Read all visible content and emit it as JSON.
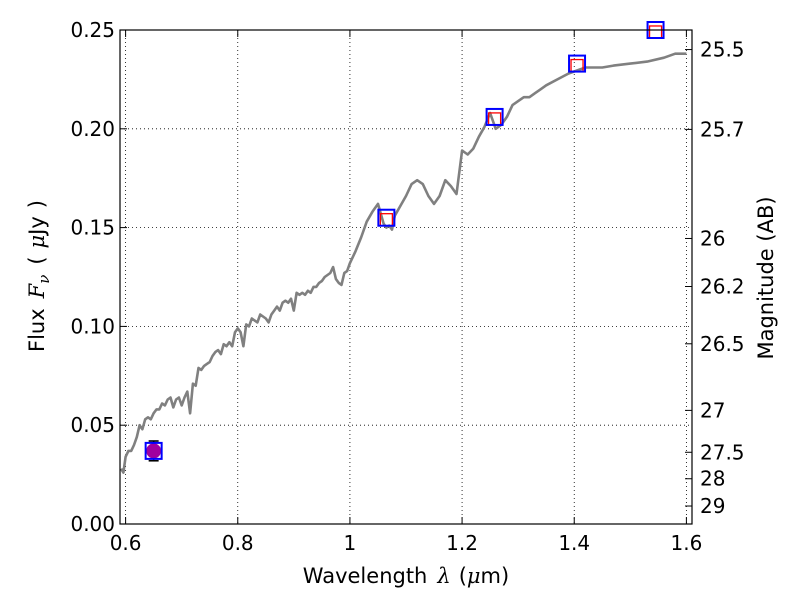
{
  "chart_data": {
    "type": "line",
    "xlabel": {
      "prefix": "Wavelength",
      "symbol": "λ",
      "unit_open": "(",
      "unit_mu": "μ",
      "unit_rest": "m)"
    },
    "ylabel": {
      "prefix": "Flux",
      "symbol": "F",
      "subscript": "ν",
      "unit_open": "(",
      "unit_mu": "μ",
      "unit_rest": "Jy",
      "unit_close": ")"
    },
    "y2label": "Magnitude (AB)",
    "xlim": [
      0.59,
      1.61
    ],
    "ylim": [
      0.0,
      0.25
    ],
    "x_ticks": [
      {
        "value": 0.6,
        "label": "0.6"
      },
      {
        "value": 0.8,
        "label": "0.8"
      },
      {
        "value": 1.0,
        "label": "1"
      },
      {
        "value": 1.2,
        "label": "1.2"
      },
      {
        "value": 1.4,
        "label": "1.4"
      },
      {
        "value": 1.6,
        "label": "1.6"
      }
    ],
    "y_ticks": [
      {
        "value": 0.0,
        "label": "0.00"
      },
      {
        "value": 0.05,
        "label": "0.05"
      },
      {
        "value": 0.1,
        "label": "0.10"
      },
      {
        "value": 0.15,
        "label": "0.15"
      },
      {
        "value": 0.2,
        "label": "0.20"
      },
      {
        "value": 0.25,
        "label": "0.25"
      }
    ],
    "y2_ticks": [
      {
        "flux": 0.2401,
        "label": "25.5"
      },
      {
        "flux": 0.1997,
        "label": "25.7"
      },
      {
        "flux": 0.1445,
        "label": "26"
      },
      {
        "flux": 0.1202,
        "label": "26.2"
      },
      {
        "flux": 0.0912,
        "label": "26.5"
      },
      {
        "flux": 0.0575,
        "label": "27"
      },
      {
        "flux": 0.0363,
        "label": "27.5"
      },
      {
        "flux": 0.0229,
        "label": "28"
      },
      {
        "flux": 0.0091,
        "label": "29"
      }
    ],
    "grid": true,
    "model_spectrum": {
      "color": "#808080",
      "x": [
        0.592,
        0.596,
        0.6,
        0.605,
        0.61,
        0.615,
        0.62,
        0.625,
        0.63,
        0.635,
        0.64,
        0.645,
        0.65,
        0.655,
        0.66,
        0.665,
        0.67,
        0.675,
        0.68,
        0.685,
        0.69,
        0.695,
        0.7,
        0.705,
        0.71,
        0.715,
        0.72,
        0.725,
        0.73,
        0.735,
        0.74,
        0.745,
        0.75,
        0.755,
        0.76,
        0.765,
        0.77,
        0.775,
        0.78,
        0.785,
        0.79,
        0.795,
        0.8,
        0.805,
        0.81,
        0.815,
        0.82,
        0.825,
        0.83,
        0.835,
        0.84,
        0.845,
        0.85,
        0.855,
        0.86,
        0.865,
        0.87,
        0.875,
        0.88,
        0.885,
        0.89,
        0.895,
        0.9,
        0.905,
        0.91,
        0.915,
        0.92,
        0.925,
        0.93,
        0.935,
        0.94,
        0.945,
        0.95,
        0.955,
        0.96,
        0.965,
        0.97,
        0.975,
        0.98,
        0.985,
        0.99,
        0.995,
        1.0,
        1.01,
        1.02,
        1.03,
        1.04,
        1.05,
        1.06,
        1.065,
        1.07,
        1.075,
        1.08,
        1.09,
        1.1,
        1.11,
        1.12,
        1.13,
        1.14,
        1.15,
        1.16,
        1.17,
        1.18,
        1.19,
        1.2,
        1.21,
        1.22,
        1.23,
        1.24,
        1.25,
        1.26,
        1.27,
        1.28,
        1.29,
        1.3,
        1.31,
        1.32,
        1.33,
        1.34,
        1.35,
        1.37,
        1.39,
        1.4,
        1.41,
        1.42,
        1.43,
        1.45,
        1.47,
        1.5,
        1.53,
        1.56,
        1.58,
        1.6
      ],
      "y": [
        0.028,
        0.026,
        0.034,
        0.037,
        0.037,
        0.04,
        0.044,
        0.05,
        0.048,
        0.053,
        0.054,
        0.053,
        0.056,
        0.058,
        0.058,
        0.061,
        0.06,
        0.063,
        0.064,
        0.059,
        0.063,
        0.064,
        0.06,
        0.064,
        0.067,
        0.056,
        0.071,
        0.07,
        0.079,
        0.078,
        0.08,
        0.081,
        0.082,
        0.085,
        0.087,
        0.088,
        0.086,
        0.091,
        0.09,
        0.092,
        0.09,
        0.097,
        0.099,
        0.097,
        0.09,
        0.101,
        0.1,
        0.104,
        0.103,
        0.102,
        0.106,
        0.105,
        0.104,
        0.102,
        0.106,
        0.108,
        0.11,
        0.108,
        0.112,
        0.113,
        0.112,
        0.114,
        0.108,
        0.117,
        0.116,
        0.117,
        0.116,
        0.118,
        0.117,
        0.12,
        0.12,
        0.122,
        0.123,
        0.125,
        0.126,
        0.127,
        0.13,
        0.124,
        0.122,
        0.121,
        0.127,
        0.128,
        0.132,
        0.138,
        0.145,
        0.153,
        0.158,
        0.162,
        0.152,
        0.15,
        0.151,
        0.149,
        0.156,
        0.161,
        0.166,
        0.172,
        0.174,
        0.172,
        0.166,
        0.162,
        0.166,
        0.174,
        0.171,
        0.167,
        0.189,
        0.187,
        0.19,
        0.196,
        0.201,
        0.208,
        0.2,
        0.202,
        0.206,
        0.212,
        0.214,
        0.216,
        0.216,
        0.218,
        0.22,
        0.222,
        0.225,
        0.228,
        0.229,
        0.23,
        0.231,
        0.231,
        0.231,
        0.232,
        0.233,
        0.234,
        0.236,
        0.238,
        0.238
      ]
    },
    "photometry": {
      "observed_color": "#a000a0",
      "observed": [
        {
          "x": 0.65,
          "y": 0.037,
          "yerr": 0.005
        }
      ],
      "model_box_color": "#0000ff",
      "model_boxes": [
        {
          "x": 0.65,
          "y": 0.037
        },
        {
          "x": 1.065,
          "y": 0.155
        },
        {
          "x": 1.258,
          "y": 0.206
        },
        {
          "x": 1.405,
          "y": 0.233
        },
        {
          "x": 1.545,
          "y": 0.25
        }
      ],
      "synthetic_color": "#ff0000",
      "synthetic": [
        {
          "x": 1.065,
          "y": 0.154
        },
        {
          "x": 1.258,
          "y": 0.205
        },
        {
          "x": 1.405,
          "y": 0.232
        },
        {
          "x": 1.545,
          "y": 0.249
        }
      ]
    }
  }
}
